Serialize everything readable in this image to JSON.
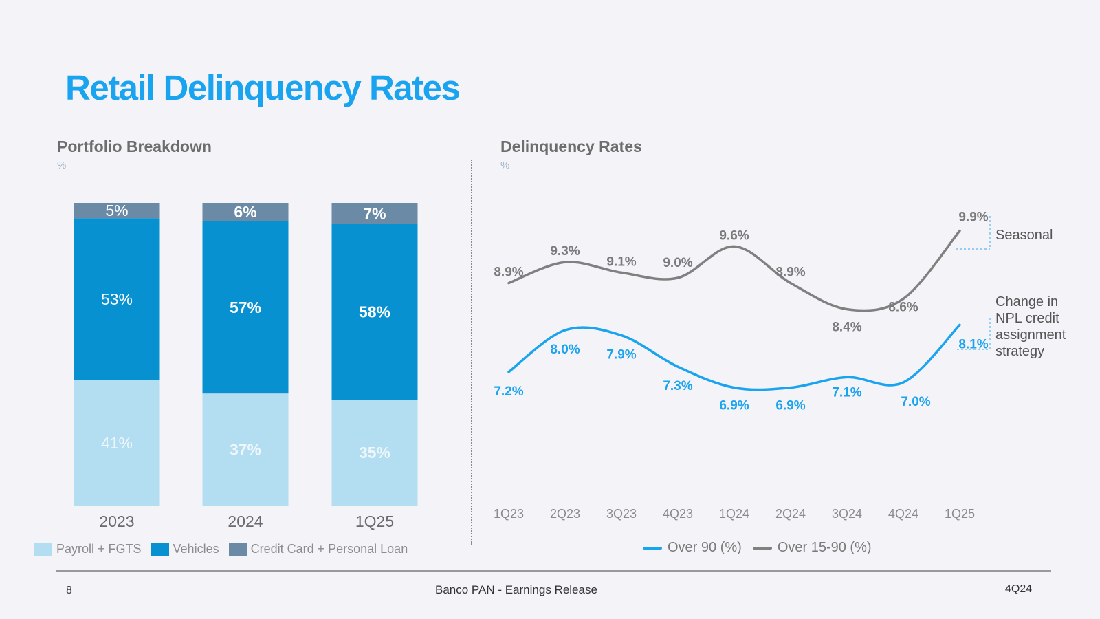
{
  "page": {
    "title": "Retail Delinquency Rates",
    "footer": {
      "page_number": "8",
      "center": "Banco PAN - Earnings Release",
      "right": "4Q24"
    }
  },
  "colors": {
    "payroll": "#b3ddf0",
    "vehicles": "#0791d0",
    "credit_card": "#6b8aa6",
    "over90": "#1aa3ef",
    "over15_90": "#808080"
  },
  "left_panel": {
    "title": "Portfolio Breakdown",
    "unit": "%"
  },
  "right_panel": {
    "title": "Delinquency Rates",
    "unit": "%"
  },
  "annotations": {
    "seasonal": "Seasonal",
    "change_in_npl": [
      "Change in",
      "NPL credit",
      "assignment",
      "strategy"
    ]
  },
  "chart_data": [
    {
      "type": "bar",
      "stacked": true,
      "title": "Portfolio Breakdown",
      "ylabel": "%",
      "categories": [
        "2023",
        "2024",
        "1Q25"
      ],
      "series": [
        {
          "name": "Payroll + FGTS",
          "values": [
            41,
            37,
            35
          ],
          "labels": [
            "41%",
            "37%",
            "35%"
          ]
        },
        {
          "name": "Vehicles",
          "values": [
            53,
            57,
            58
          ],
          "labels": [
            "53%",
            "57%",
            "58%"
          ]
        },
        {
          "name": "Credit Card + Personal Loan",
          "values": [
            5,
            6,
            7
          ],
          "labels": [
            "5%",
            "6%",
            "7%"
          ]
        }
      ],
      "legend": "bottom"
    },
    {
      "type": "line",
      "title": "Delinquency Rates",
      "ylabel": "%",
      "categories": [
        "1Q23",
        "2Q23",
        "3Q23",
        "4Q23",
        "1Q24",
        "2Q24",
        "3Q24",
        "4Q24",
        "1Q25"
      ],
      "ylim": [
        5.5,
        10.5
      ],
      "series": [
        {
          "name": "Over 90 (%)",
          "values": [
            7.2,
            8.0,
            7.9,
            7.3,
            6.9,
            6.9,
            7.1,
            7.0,
            8.1
          ],
          "labels": [
            "7.2%",
            "8.0%",
            "7.9%",
            "7.3%",
            "6.9%",
            "6.9%",
            "7.1%",
            "7.0%",
            "8.1%"
          ]
        },
        {
          "name": "Over 15-90 (%)",
          "values": [
            8.9,
            9.3,
            9.1,
            9.0,
            9.6,
            8.9,
            8.4,
            8.6,
            9.9
          ],
          "labels": [
            "8.9%",
            "9.3%",
            "9.1%",
            "9.0%",
            "9.6%",
            "8.9%",
            "8.4%",
            "8.6%",
            "9.9%"
          ]
        }
      ],
      "legend": "bottom"
    }
  ]
}
